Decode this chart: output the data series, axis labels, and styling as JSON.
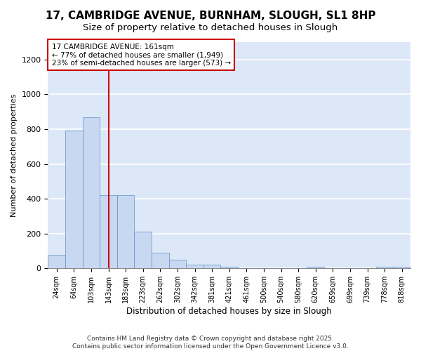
{
  "title_line1": "17, CAMBRIDGE AVENUE, BURNHAM, SLOUGH, SL1 8HP",
  "title_line2": "Size of property relative to detached houses in Slough",
  "xlabel": "Distribution of detached houses by size in Slough",
  "ylabel": "Number of detached properties",
  "categories": [
    "24sqm",
    "64sqm",
    "103sqm",
    "143sqm",
    "183sqm",
    "223sqm",
    "262sqm",
    "302sqm",
    "342sqm",
    "381sqm",
    "421sqm",
    "461sqm",
    "500sqm",
    "540sqm",
    "580sqm",
    "620sqm",
    "659sqm",
    "699sqm",
    "739sqm",
    "778sqm",
    "818sqm"
  ],
  "values": [
    80,
    790,
    870,
    420,
    420,
    210,
    90,
    50,
    20,
    20,
    10,
    0,
    0,
    0,
    0,
    10,
    0,
    0,
    0,
    10,
    10
  ],
  "bar_color": "#c8d8f0",
  "bar_edge_color": "#6090c8",
  "vline_x_index": 3,
  "vline_color": "#cc0000",
  "annotation_text_line1": "17 CAMBRIDGE AVENUE: 161sqm",
  "annotation_text_line2": "← 77% of detached houses are smaller (1,949)",
  "annotation_text_line3": "23% of semi-detached houses are larger (573) →",
  "ylim": [
    0,
    1300
  ],
  "yticks": [
    0,
    200,
    400,
    600,
    800,
    1000,
    1200
  ],
  "fig_bg": "#ffffff",
  "plot_bg": "#dce8f8",
  "grid_color": "#ffffff",
  "footer_line1": "Contains HM Land Registry data © Crown copyright and database right 2025.",
  "footer_line2": "Contains public sector information licensed under the Open Government Licence v3.0."
}
